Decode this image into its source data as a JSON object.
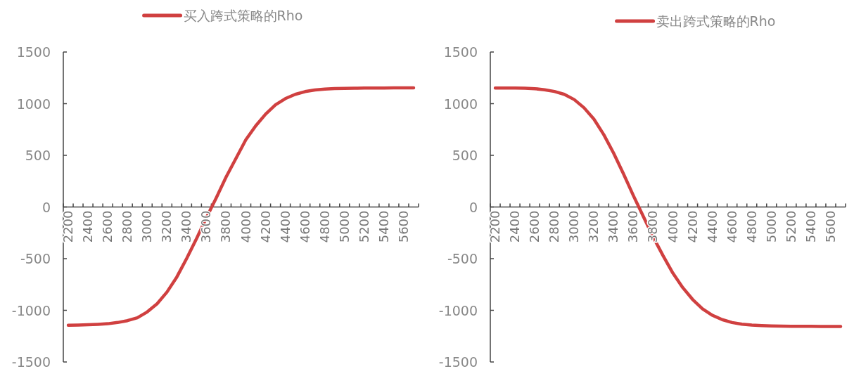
{
  "chart_data": [
    {
      "type": "line",
      "categories": [
        "2200",
        null,
        "2400",
        null,
        "2600",
        null,
        "2800",
        null,
        "3000",
        null,
        "3200",
        null,
        "3400",
        null,
        "3600",
        null,
        "3800",
        null,
        "4000",
        null,
        "4200",
        null,
        "4400",
        null,
        "4600",
        null,
        "4800",
        null,
        "5000",
        null,
        "5200",
        null,
        "5400",
        null,
        "5600",
        null
      ],
      "series": [
        {
          "name": "买入跨式策略的Rho",
          "color": "#d04040",
          "values": [
            -1145,
            -1143,
            -1140,
            -1136,
            -1130,
            -1118,
            -1100,
            -1072,
            -1016,
            -937,
            -824,
            -678,
            -498,
            -306,
            -104,
            88,
            291,
            471,
            651,
            786,
            899,
            989,
            1049,
            1090,
            1117,
            1133,
            1141,
            1146,
            1148,
            1150,
            1151,
            1152,
            1152,
            1153,
            1153,
            1153
          ]
        }
      ],
      "ylim": [
        -1500,
        1500
      ],
      "yticks": [
        -1500,
        -1000,
        -500,
        0,
        500,
        1000,
        1500
      ],
      "legend": "top"
    },
    {
      "type": "line",
      "categories": [
        "2200",
        null,
        "2400",
        null,
        "2600",
        null,
        "2800",
        null,
        "3000",
        null,
        "3200",
        null,
        "3400",
        null,
        "3600",
        null,
        "3800",
        null,
        "4000",
        null,
        "4200",
        null,
        "4400",
        null,
        "4600",
        null,
        "4800",
        null,
        "5000",
        null,
        "5200",
        null,
        "5400",
        null,
        "5600",
        null
      ],
      "series": [
        {
          "name": "卖出跨式策略的Rho",
          "color": "#d04040",
          "values": [
            1152,
            1152,
            1151,
            1149,
            1145,
            1135,
            1118,
            1090,
            1040,
            960,
            850,
            700,
            520,
            320,
            110,
            -90,
            -290,
            -470,
            -640,
            -780,
            -895,
            -985,
            -1048,
            -1090,
            -1118,
            -1134,
            -1143,
            -1148,
            -1151,
            -1153,
            -1154,
            -1155,
            -1155,
            -1156,
            -1156,
            -1156
          ]
        }
      ],
      "ylim": [
        -1500,
        1500
      ],
      "yticks": [
        -1500,
        -1000,
        -500,
        0,
        500,
        1000,
        1500
      ],
      "legend": "top"
    }
  ]
}
